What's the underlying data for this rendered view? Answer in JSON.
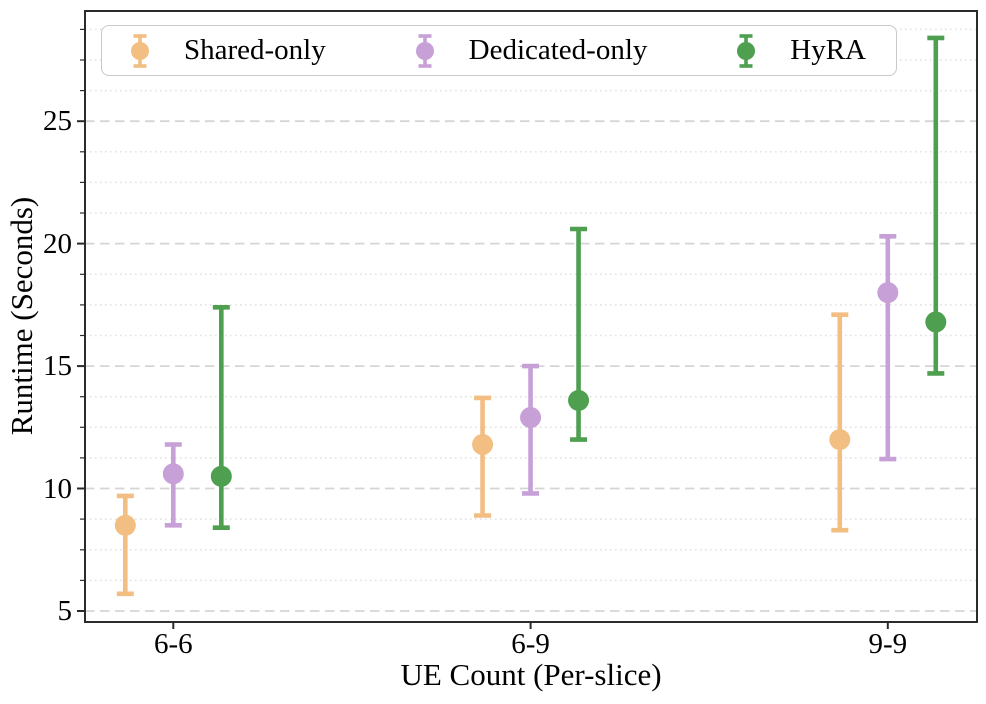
{
  "chart_data": {
    "type": "errorbar",
    "title": "",
    "xlabel": "UE Count (Per-slice)",
    "ylabel": "Runtime (Seconds)",
    "categories": [
      "6-6",
      "6-9",
      "9-9"
    ],
    "y_ticks": [
      5,
      10,
      15,
      20,
      25
    ],
    "ylim": [
      4.55,
      29.5
    ],
    "minor_grid_step": 1.25,
    "grid": "major-dashed and minor-dotted horizontal",
    "legend_position": "upper center, horizontal",
    "series": [
      {
        "name": "Shared-only",
        "color": "#F2BE82",
        "means": [
          8.5,
          11.8,
          12.0
        ],
        "err_low": [
          5.7,
          8.9,
          8.3
        ],
        "err_high": [
          9.7,
          13.7,
          17.1
        ]
      },
      {
        "name": "Dedicated-only",
        "color": "#C7A0D8",
        "means": [
          10.6,
          12.9,
          18.0
        ],
        "err_low": [
          8.5,
          9.8,
          11.2
        ],
        "err_high": [
          11.8,
          15.0,
          20.3
        ]
      },
      {
        "name": "HyRA",
        "color": "#4E9F50",
        "means": [
          10.5,
          13.6,
          16.8
        ],
        "err_low": [
          8.4,
          12.0,
          14.7
        ],
        "err_high": [
          17.4,
          20.6,
          28.4
        ]
      }
    ]
  },
  "style": {
    "spine_color": "#2b2b2b",
    "major_grid_color": "#d5d5d5",
    "minor_grid_color": "#e1e1e1",
    "tick_color": "#2b2b2b",
    "text_color": "#000000",
    "background": "#ffffff"
  }
}
